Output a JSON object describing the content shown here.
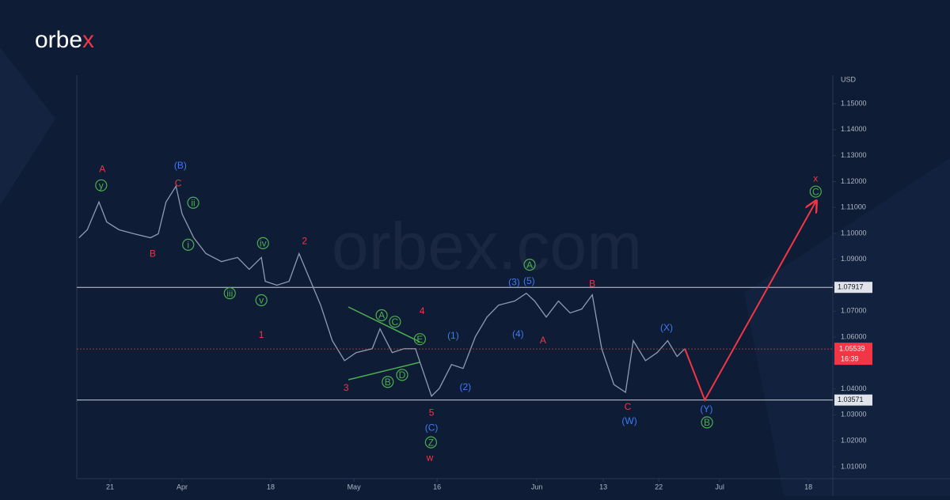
{
  "logo": [
    "orbe",
    "x"
  ],
  "watermark": "orbex.com",
  "chart_data": {
    "type": "line",
    "y_unit": "USD",
    "xlim": [
      0,
      136.4
    ],
    "ylim": [
      1.0054,
      1.161
    ],
    "xticks": [
      {
        "value": 6,
        "label": "21"
      },
      {
        "value": 19,
        "label": "Apr"
      },
      {
        "value": 35,
        "label": "18"
      },
      {
        "value": 50,
        "label": "May"
      },
      {
        "value": 65,
        "label": "16"
      },
      {
        "value": 83,
        "label": "Jun"
      },
      {
        "value": 95,
        "label": "13"
      },
      {
        "value": 105,
        "label": "22"
      },
      {
        "value": 116,
        "label": "Jul"
      },
      {
        "value": 132,
        "label": "18"
      }
    ],
    "yticks": [
      {
        "value": 1.01,
        "label": "1.01000"
      },
      {
        "value": 1.02,
        "label": "1.02000"
      },
      {
        "value": 1.03,
        "label": "1.03000"
      },
      {
        "value": 1.04,
        "label": "1.04000"
      },
      {
        "value": 1.05,
        "label": "1.05000"
      },
      {
        "value": 1.06,
        "label": "1.06000"
      },
      {
        "value": 1.07,
        "label": "1.07000"
      },
      {
        "value": 1.08,
        "label": "1.08000"
      },
      {
        "value": 1.09,
        "label": "1.09000"
      },
      {
        "value": 1.1,
        "label": "1.10000"
      },
      {
        "value": 1.11,
        "label": "1.11000"
      },
      {
        "value": 1.12,
        "label": "1.12000"
      },
      {
        "value": 1.13,
        "label": "1.13000"
      },
      {
        "value": 1.14,
        "label": "1.14000"
      },
      {
        "value": 1.15,
        "label": "1.15000"
      }
    ],
    "series": [
      {
        "color": "#8f9bb0",
        "x": [
          0.4,
          1.9,
          4.0,
          5.4,
          7.6,
          10.4,
          13.3,
          14.7,
          16.1,
          17.9,
          19.0,
          21.1,
          23.3,
          26.1,
          29.0,
          31.1,
          33.3,
          34.0,
          36.1,
          38.3,
          40.1,
          41.9,
          44.0,
          46.1,
          48.3,
          50.4,
          53.3,
          54.7,
          56.9,
          59.0,
          61.1,
          64.0,
          65.4,
          67.6,
          69.7,
          71.9,
          74.0,
          76.1,
          79.0,
          81.1,
          82.6,
          84.7,
          86.9,
          89.0,
          91.1,
          93.0,
          94.7,
          96.9,
          99.0,
          100.4,
          102.6,
          104.7,
          106.6,
          108.3,
          109.7
        ],
        "values": [
          1.0983,
          1.1014,
          1.1121,
          1.1044,
          1.1014,
          1.0998,
          1.0983,
          1.0998,
          1.1121,
          1.1182,
          1.1075,
          1.0983,
          1.0922,
          1.0891,
          1.0907,
          1.0861,
          1.0907,
          1.0815,
          1.08,
          1.0815,
          1.0922,
          1.083,
          1.0723,
          1.0586,
          1.0509,
          1.054,
          1.0555,
          1.0632,
          1.054,
          1.0555,
          1.0555,
          1.0372,
          1.0402,
          1.0494,
          1.0479,
          1.0601,
          1.0677,
          1.0723,
          1.0739,
          1.0769,
          1.0739,
          1.0677,
          1.0739,
          1.0693,
          1.0708,
          1.0763,
          1.0555,
          1.0417,
          1.0387,
          1.0586,
          1.0509,
          1.054,
          1.0586,
          1.0525,
          1.0555
        ]
      },
      {
        "color": "#f23645",
        "arrow": true,
        "x": [
          109.7,
          113.3,
          133.3
        ],
        "values": [
          1.0555,
          1.0357,
          1.1121
        ]
      }
    ],
    "levels": [
      1.07917,
      1.03571
    ],
    "last": {
      "value": 1.05539,
      "time": "16:39",
      "color": "#f23645"
    },
    "annotations": [
      {
        "text": "A",
        "x": 4.6,
        "y": 1.1249,
        "color": "#f23645",
        "circled": false
      },
      {
        "text": "B",
        "x": 13.7,
        "y": 1.0922,
        "color": "#f23645",
        "circled": false
      },
      {
        "text": "C",
        "x": 18.3,
        "y": 1.1194,
        "color": "#f23645",
        "circled": false
      },
      {
        "text": "2",
        "x": 41.1,
        "y": 1.0971,
        "color": "#f23645",
        "circled": false
      },
      {
        "text": "1",
        "x": 33.3,
        "y": 1.061,
        "color": "#f23645",
        "circled": false
      },
      {
        "text": "4",
        "x": 62.3,
        "y": 1.0702,
        "color": "#f23645",
        "circled": false
      },
      {
        "text": "3",
        "x": 48.6,
        "y": 1.0405,
        "color": "#f23645",
        "circled": false
      },
      {
        "text": "5",
        "x": 64.0,
        "y": 1.031,
        "color": "#f23645",
        "circled": false
      },
      {
        "text": "w",
        "x": 63.7,
        "y": 1.0136,
        "color": "#f23645",
        "circled": false
      },
      {
        "text": "A",
        "x": 84.1,
        "y": 1.0589,
        "color": "#f23645",
        "circled": false
      },
      {
        "text": "B",
        "x": 93.0,
        "y": 1.0806,
        "color": "#f23645",
        "circled": false
      },
      {
        "text": "C",
        "x": 99.4,
        "y": 1.0332,
        "color": "#f23645",
        "circled": false
      },
      {
        "text": "x",
        "x": 133.3,
        "y": 1.1213,
        "color": "#f23645",
        "circled": false
      },
      {
        "text": "(B)",
        "x": 18.7,
        "y": 1.1262,
        "color": "#3d7bf5",
        "circled": false
      },
      {
        "text": "(3)",
        "x": 78.9,
        "y": 1.0812,
        "color": "#3d7bf5",
        "circled": false
      },
      {
        "text": "(5)",
        "x": 81.6,
        "y": 1.0818,
        "color": "#3d7bf5",
        "circled": false
      },
      {
        "text": "(4)",
        "x": 79.6,
        "y": 1.0613,
        "color": "#3d7bf5",
        "circled": false
      },
      {
        "text": "(1)",
        "x": 67.9,
        "y": 1.0607,
        "color": "#3d7bf5",
        "circled": false
      },
      {
        "text": "(2)",
        "x": 70.1,
        "y": 1.0408,
        "color": "#3d7bf5",
        "circled": false
      },
      {
        "text": "(C)",
        "x": 64.0,
        "y": 1.0252,
        "color": "#3d7bf5",
        "circled": false
      },
      {
        "text": "(X)",
        "x": 106.4,
        "y": 1.0638,
        "color": "#3d7bf5",
        "circled": false
      },
      {
        "text": "(W)",
        "x": 99.7,
        "y": 1.0277,
        "color": "#3d7bf5",
        "circled": false
      },
      {
        "text": "(Y)",
        "x": 113.6,
        "y": 1.0323,
        "color": "#3d7bf5",
        "circled": false
      },
      {
        "text": "y",
        "x": 4.4,
        "y": 1.1185,
        "color": "#4caf50",
        "circled": true
      },
      {
        "text": "ii",
        "x": 21.0,
        "y": 1.1118,
        "color": "#4caf50",
        "circled": true
      },
      {
        "text": "i",
        "x": 20.1,
        "y": 1.0956,
        "color": "#4caf50",
        "circled": true
      },
      {
        "text": "iv",
        "x": 33.6,
        "y": 1.0962,
        "color": "#4caf50",
        "circled": true
      },
      {
        "text": "iii",
        "x": 27.6,
        "y": 1.0769,
        "color": "#4caf50",
        "circled": true
      },
      {
        "text": "v",
        "x": 33.3,
        "y": 1.0742,
        "color": "#4caf50",
        "circled": true
      },
      {
        "text": "A",
        "x": 55.0,
        "y": 1.0684,
        "color": "#4caf50",
        "circled": true
      },
      {
        "text": "C",
        "x": 57.4,
        "y": 1.0659,
        "color": "#4caf50",
        "circled": true
      },
      {
        "text": "E",
        "x": 61.9,
        "y": 1.0592,
        "color": "#4caf50",
        "circled": true
      },
      {
        "text": "B",
        "x": 56.1,
        "y": 1.0427,
        "color": "#4caf50",
        "circled": true
      },
      {
        "text": "D",
        "x": 58.7,
        "y": 1.0454,
        "color": "#4caf50",
        "circled": true
      },
      {
        "text": "Z",
        "x": 63.9,
        "y": 1.0194,
        "color": "#4caf50",
        "circled": true
      },
      {
        "text": "A",
        "x": 81.7,
        "y": 1.0879,
        "color": "#4caf50",
        "circled": true
      },
      {
        "text": "C",
        "x": 133.3,
        "y": 1.1161,
        "color": "#4caf50",
        "circled": true
      },
      {
        "text": "B",
        "x": 113.7,
        "y": 1.0271,
        "color": "#4caf50",
        "circled": true
      }
    ]
  }
}
